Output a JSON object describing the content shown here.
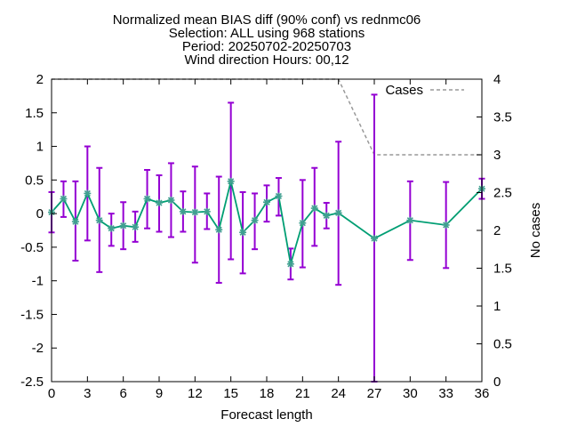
{
  "chart_data": {
    "type": "line",
    "title_lines": [
      "Normalized mean BIAS diff (90% conf) vs rednmc06",
      "Selection: ALL using   968 stations",
      "Period: 20250702-20250703",
      "Wind direction   Hours: 00,12"
    ],
    "xlabel": "Forecast length",
    "ylabel": "",
    "y2label": "No cases",
    "xlim": [
      0,
      36
    ],
    "ylim": [
      -2.5,
      2
    ],
    "y2lim": [
      0,
      4
    ],
    "x_ticks": [
      0,
      3,
      6,
      9,
      12,
      15,
      18,
      21,
      24,
      27,
      30,
      33,
      36
    ],
    "y_ticks": [
      -2.5,
      -2,
      -1.5,
      -1,
      -0.5,
      0,
      0.5,
      1,
      1.5,
      2
    ],
    "y2_ticks": [
      0,
      0.5,
      1,
      1.5,
      2,
      2.5,
      3,
      3.5,
      4
    ],
    "grid": false,
    "legend_position": "top-right",
    "colors": {
      "bias_line": "#009e73",
      "bias_marker": "#40a090",
      "error_bar": "#9400d3",
      "cases_line": "#999999"
    },
    "series": [
      {
        "key": "bias",
        "x": [
          0,
          1,
          2,
          3,
          4,
          5,
          6,
          7,
          8,
          9,
          10,
          11,
          12,
          13,
          14,
          15,
          16,
          17,
          18,
          19,
          20,
          21,
          22,
          23,
          24,
          27,
          30,
          33,
          36
        ],
        "y": [
          0.02,
          0.22,
          -0.12,
          0.3,
          -0.1,
          -0.22,
          -0.18,
          -0.2,
          0.22,
          0.16,
          0.2,
          0.03,
          0.02,
          0.03,
          -0.24,
          0.48,
          -0.28,
          -0.1,
          0.17,
          0.26,
          -0.75,
          -0.14,
          0.08,
          -0.03,
          0.01,
          -0.37,
          -0.1,
          -0.17,
          0.37
        ],
        "y_low": [
          -0.28,
          -0.05,
          -0.7,
          -0.4,
          -0.87,
          -0.48,
          -0.53,
          -0.42,
          -0.22,
          -0.27,
          -0.35,
          -0.27,
          -0.73,
          -0.23,
          -1.03,
          -0.68,
          -0.89,
          -0.53,
          -0.12,
          -0.03,
          -0.98,
          -0.8,
          -0.48,
          -0.22,
          -1.06,
          -2.5,
          -0.69,
          -0.81,
          0.22
        ],
        "y_high": [
          0.32,
          0.48,
          0.48,
          1.0,
          0.68,
          0.0,
          0.17,
          0.03,
          0.65,
          0.57,
          0.75,
          0.33,
          0.7,
          0.3,
          0.55,
          1.65,
          0.32,
          0.3,
          0.42,
          0.53,
          -0.52,
          0.5,
          0.68,
          0.16,
          1.07,
          1.77,
          0.48,
          0.47,
          0.52
        ]
      },
      {
        "key": "cases",
        "name": "Cases",
        "axis": "y2",
        "x": [
          0,
          24,
          27,
          36
        ],
        "y": [
          4,
          4,
          3,
          3
        ]
      }
    ]
  }
}
